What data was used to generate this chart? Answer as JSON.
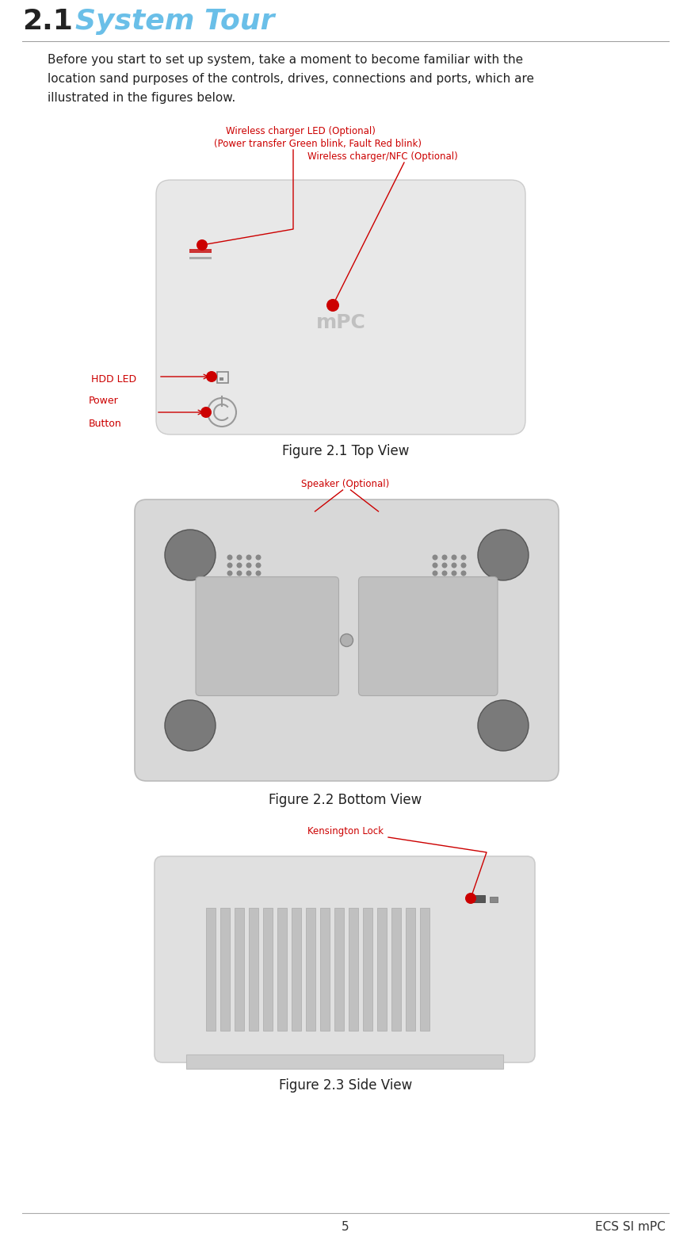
{
  "title_num": "2.1",
  "title_text": "System Tour",
  "title_color": "#6abfe8",
  "title_num_color": "#222222",
  "body_text_line1": "Before you start to set up system, take a moment to become familiar with the",
  "body_text_line2": "location sand purposes of the controls, drives, connections and ports, which are",
  "body_text_line3": "illustrated in the figures below.",
  "body_color": "#222222",
  "annotation_color": "#cc0000",
  "page_num": "5",
  "footer_right": "ECS SI mPC",
  "fig1_caption": "Figure 2.1 Top View",
  "fig2_caption": "Figure 2.2 Bottom View",
  "fig3_caption": "Figure 2.3 Side View",
  "device_color": "#e8e8e8",
  "device_edge": "#cccccc",
  "mpc_text_color": "#c0c0c0"
}
